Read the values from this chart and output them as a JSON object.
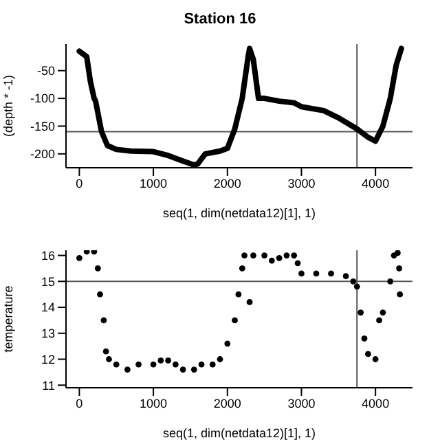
{
  "chart_data": [
    {
      "type": "line",
      "title": "Station 16",
      "xlabel": "seq(1, dim(netdata12)[1], 1)",
      "ylabel": "(depth * -1)",
      "xlim": [
        -180,
        4500
      ],
      "xticks": [
        0,
        1000,
        2000,
        3000,
        4000
      ],
      "ylim": [
        -225,
        -2
      ],
      "yticks": [
        -50,
        -100,
        -150,
        -200
      ],
      "marker": "none",
      "line_style": "solid",
      "ref_lines": [
        {
          "axis": "y",
          "value": -160,
          "color": "#555555"
        },
        {
          "axis": "x",
          "value": 3750,
          "color": "#555555"
        }
      ],
      "x": [
        0,
        50,
        100,
        150,
        200,
        220,
        300,
        380,
        500,
        700,
        1000,
        1200,
        1400,
        1550,
        1600,
        1700,
        1900,
        2000,
        2100,
        2200,
        2280,
        2300,
        2350,
        2420,
        2500,
        2700,
        2900,
        3000,
        3300,
        3500,
        3750,
        3900,
        4000,
        4100,
        4200,
        4280,
        4350
      ],
      "series": [
        {
          "color": "#000000",
          "values": [
            -15,
            -20,
            -25,
            -70,
            -100,
            -105,
            -160,
            -185,
            -192,
            -195,
            -196,
            -203,
            -213,
            -220,
            -218,
            -200,
            -195,
            -190,
            -155,
            -100,
            -25,
            -10,
            -30,
            -100,
            -100,
            -105,
            -108,
            -115,
            -122,
            -135,
            -155,
            -170,
            -177,
            -150,
            -100,
            -40,
            -10
          ]
        }
      ]
    },
    {
      "type": "scatter",
      "xlabel": "seq(1, dim(netdata12)[1], 1)",
      "ylabel": "temperature",
      "xlim": [
        -180,
        4500
      ],
      "xticks": [
        0,
        1000,
        2000,
        3000,
        4000
      ],
      "ylim": [
        10.9,
        16.2
      ],
      "yticks": [
        11,
        12,
        13,
        14,
        15,
        16
      ],
      "marker": "circle",
      "ref_lines": [
        {
          "axis": "y",
          "value": 15,
          "color": "#555555"
        },
        {
          "axis": "x",
          "value": 3750,
          "color": "#555555"
        }
      ],
      "x": [
        0,
        100,
        200,
        250,
        280,
        330,
        360,
        400,
        500,
        650,
        800,
        1000,
        1100,
        1200,
        1300,
        1400,
        1550,
        1650,
        1800,
        1900,
        2000,
        2100,
        2150,
        2200,
        2230,
        2300,
        2350,
        2500,
        2600,
        2700,
        2800,
        2900,
        2950,
        3000,
        3200,
        3400,
        3600,
        3700,
        3750,
        3800,
        3850,
        3900,
        4000,
        4050,
        4100,
        4200,
        4250,
        4300,
        4320,
        4330
      ],
      "series": [
        {
          "color": "#000000",
          "values": [
            15.9,
            16.15,
            16.15,
            15.5,
            14.5,
            13.5,
            12.3,
            12,
            11.8,
            11.6,
            11.8,
            11.8,
            11.95,
            11.95,
            11.8,
            11.6,
            11.6,
            11.8,
            11.8,
            12,
            12.6,
            13.5,
            14.5,
            15.5,
            16,
            14.2,
            16,
            16,
            15.8,
            15.9,
            16,
            16,
            15.7,
            15.3,
            15.3,
            15.3,
            15.2,
            15,
            14.8,
            13.8,
            12.8,
            12.2,
            12,
            13.5,
            13.8,
            15,
            16,
            16.1,
            15.5,
            14.5
          ]
        }
      ]
    }
  ]
}
